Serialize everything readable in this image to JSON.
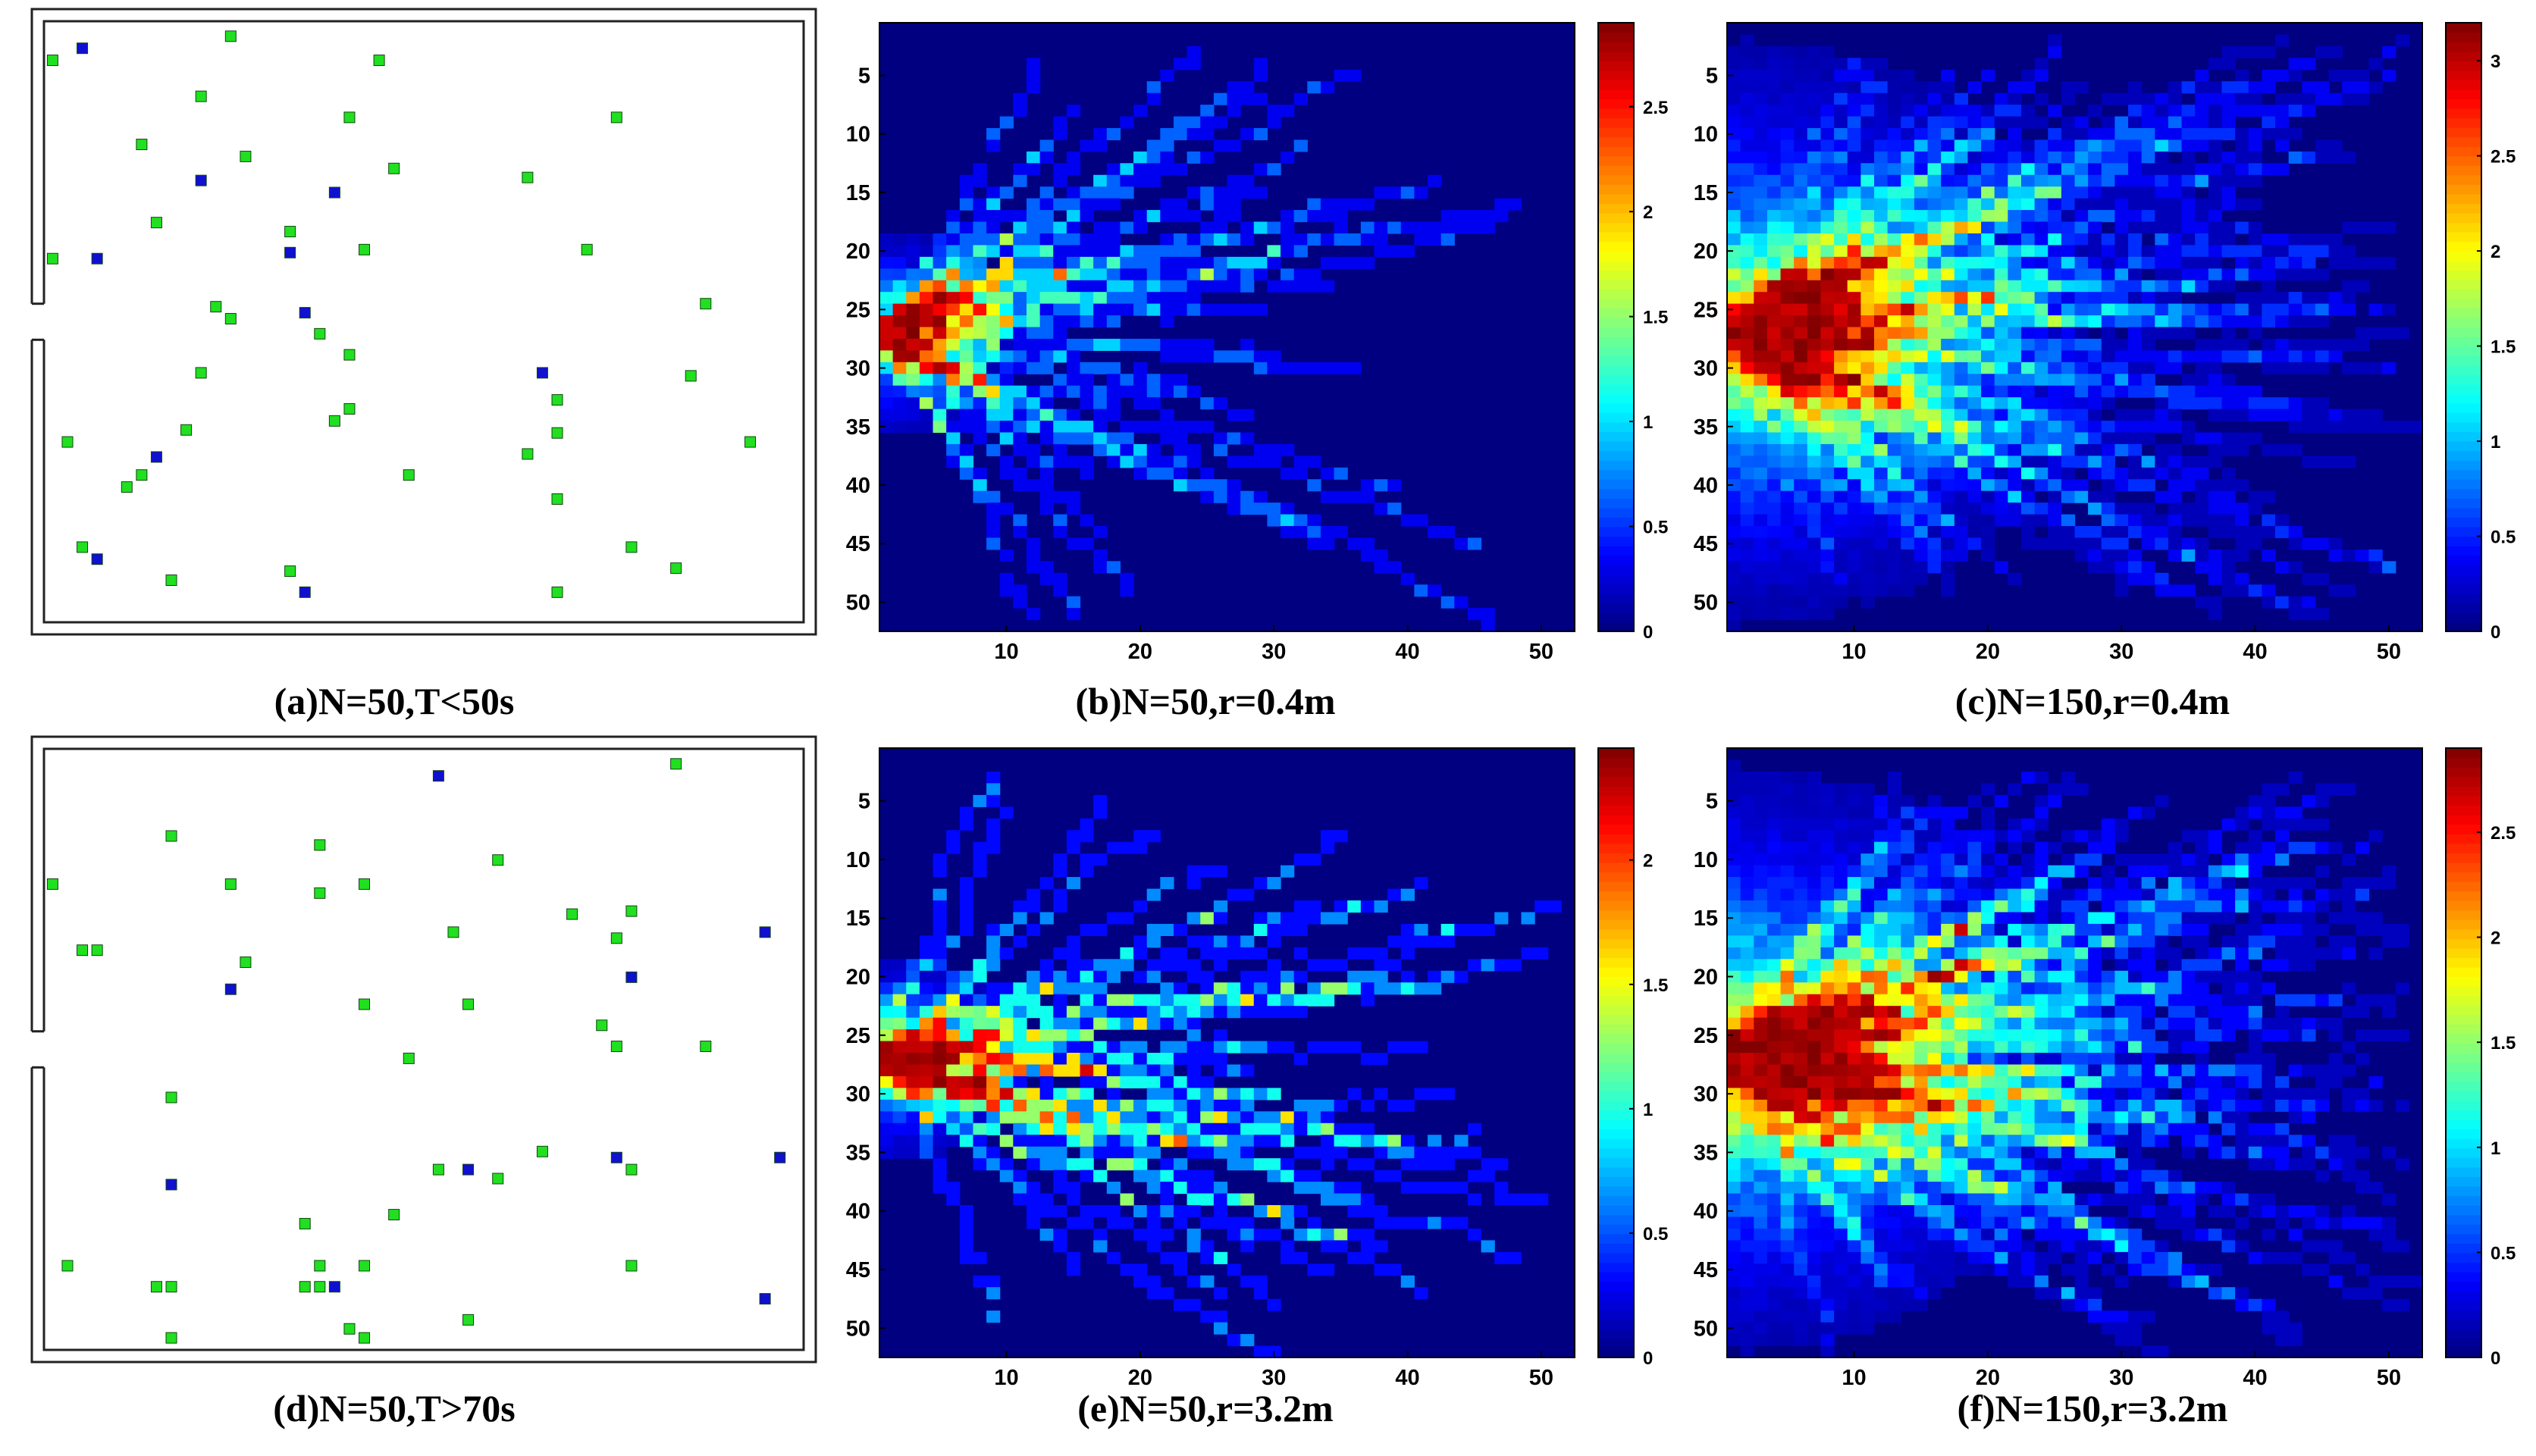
{
  "chart_data": [
    {
      "id": "a",
      "type": "scatter",
      "title": "(a)N=50,T<50s",
      "description_free": true,
      "room": {
        "width": 26,
        "height": 20,
        "door": "left",
        "door_y_range": [
          9.4,
          10.6
        ]
      },
      "series": [
        {
          "name": "green",
          "color": "#20e020",
          "points": [
            [
              0.7,
              1.3
            ],
            [
              6.7,
              0.5
            ],
            [
              11.7,
              1.3
            ],
            [
              5.7,
              2.5
            ],
            [
              10.7,
              3.2
            ],
            [
              19.7,
              3.2
            ],
            [
              3.7,
              4.1
            ],
            [
              7.2,
              4.5
            ],
            [
              12.2,
              4.9
            ],
            [
              16.7,
              5.2
            ],
            [
              4.2,
              6.7
            ],
            [
              8.7,
              7.0
            ],
            [
              11.2,
              7.6
            ],
            [
              18.7,
              7.6
            ],
            [
              0.7,
              7.9
            ],
            [
              6.2,
              9.5
            ],
            [
              22.7,
              9.4
            ],
            [
              6.7,
              9.9
            ],
            [
              9.7,
              10.4
            ],
            [
              10.7,
              11.1
            ],
            [
              5.7,
              11.7
            ],
            [
              22.2,
              11.8
            ],
            [
              17.7,
              12.6
            ],
            [
              10.7,
              12.9
            ],
            [
              10.2,
              13.3
            ],
            [
              5.2,
              13.6
            ],
            [
              17.7,
              13.7
            ],
            [
              1.2,
              14.0
            ],
            [
              24.2,
              14.0
            ],
            [
              16.7,
              14.4
            ],
            [
              3.7,
              15.1
            ],
            [
              12.7,
              15.1
            ],
            [
              3.2,
              15.5
            ],
            [
              17.7,
              15.9
            ],
            [
              1.7,
              17.5
            ],
            [
              20.2,
              17.5
            ],
            [
              21.7,
              18.2
            ],
            [
              4.7,
              18.6
            ],
            [
              8.7,
              18.3
            ],
            [
              17.7,
              19.0
            ]
          ]
        },
        {
          "name": "blue",
          "color": "#1010d0",
          "points": [
            [
              1.7,
              0.9
            ],
            [
              5.7,
              5.3
            ],
            [
              10.2,
              5.7
            ],
            [
              8.7,
              7.7
            ],
            [
              2.2,
              7.9
            ],
            [
              9.2,
              9.7
            ],
            [
              17.2,
              11.7
            ],
            [
              4.2,
              14.5
            ],
            [
              2.2,
              17.9
            ],
            [
              9.2,
              19.0
            ]
          ]
        }
      ]
    },
    {
      "id": "b",
      "type": "heatmap",
      "title": "(b)N=50,r=0.4m",
      "grid": [
        52,
        52
      ],
      "crange": [
        0,
        2.9
      ],
      "crowd": 50,
      "radius": 0.4,
      "seed": 11,
      "x_ticks": [
        10,
        20,
        30,
        40,
        50
      ],
      "y_ticks": [
        5,
        10,
        15,
        20,
        25,
        30,
        35,
        40,
        45,
        50
      ],
      "colorbar_ticks": [
        "0",
        "0.5",
        "1",
        "1.5",
        "2",
        "2.5"
      ],
      "colorbar_values": [
        0,
        0.5,
        1,
        1.5,
        2,
        2.5
      ]
    },
    {
      "id": "c",
      "type": "heatmap",
      "title": "(c)N=150,r=0.4m",
      "grid": [
        52,
        52
      ],
      "crange": [
        0,
        3.2
      ],
      "crowd": 150,
      "radius": 0.4,
      "seed": 23,
      "x_ticks": [
        10,
        20,
        30,
        40,
        50
      ],
      "y_ticks": [
        5,
        10,
        15,
        20,
        25,
        30,
        35,
        40,
        45,
        50
      ],
      "colorbar_ticks": [
        "0",
        "0.5",
        "1",
        "1.5",
        "2",
        "2.5",
        "3"
      ],
      "colorbar_values": [
        0,
        0.5,
        1,
        1.5,
        2,
        2.5,
        3
      ]
    },
    {
      "id": "d",
      "type": "scatter",
      "title": "(d)N=50,T>70s",
      "room": {
        "width": 26,
        "height": 20,
        "door": "left",
        "door_y_range": [
          9.4,
          10.6
        ]
      },
      "series": [
        {
          "name": "green",
          "color": "#20e020",
          "points": [
            [
              21.7,
              0.5
            ],
            [
              4.7,
              2.9
            ],
            [
              9.7,
              3.2
            ],
            [
              15.7,
              3.7
            ],
            [
              0.7,
              4.5
            ],
            [
              6.7,
              4.5
            ],
            [
              11.2,
              4.5
            ],
            [
              9.7,
              4.8
            ],
            [
              18.2,
              5.5
            ],
            [
              20.2,
              5.4
            ],
            [
              1.7,
              6.7
            ],
            [
              2.2,
              6.7
            ],
            [
              14.2,
              6.1
            ],
            [
              19.7,
              6.3
            ],
            [
              7.2,
              7.1
            ],
            [
              14.7,
              8.5
            ],
            [
              11.2,
              8.5
            ],
            [
              19.2,
              9.2
            ],
            [
              22.7,
              9.9
            ],
            [
              19.7,
              9.9
            ],
            [
              12.7,
              10.3
            ],
            [
              4.7,
              11.6
            ],
            [
              17.2,
              13.4
            ],
            [
              13.7,
              14.0
            ],
            [
              15.7,
              14.3
            ],
            [
              20.2,
              14.0
            ],
            [
              12.2,
              15.5
            ],
            [
              9.2,
              15.8
            ],
            [
              1.2,
              17.2
            ],
            [
              9.7,
              17.2
            ],
            [
              11.2,
              17.2
            ],
            [
              20.2,
              17.2
            ],
            [
              4.2,
              17.9
            ],
            [
              4.7,
              17.9
            ],
            [
              9.2,
              17.9
            ],
            [
              9.7,
              17.9
            ],
            [
              14.7,
              19.0
            ],
            [
              10.7,
              19.3
            ],
            [
              4.7,
              19.6
            ],
            [
              11.2,
              19.6
            ]
          ]
        },
        {
          "name": "blue",
          "color": "#1010d0",
          "points": [
            [
              13.7,
              0.9
            ],
            [
              24.7,
              6.1
            ],
            [
              20.2,
              7.6
            ],
            [
              6.7,
              8.0
            ],
            [
              4.7,
              14.5
            ],
            [
              14.7,
              14.0
            ],
            [
              19.7,
              13.6
            ],
            [
              25.2,
              13.6
            ],
            [
              10.2,
              17.9
            ],
            [
              24.7,
              18.3
            ]
          ]
        }
      ]
    },
    {
      "id": "e",
      "type": "heatmap",
      "title": "(e)N=50,r=3.2m",
      "grid": [
        52,
        52
      ],
      "crange": [
        0,
        2.45
      ],
      "crowd": 50,
      "radius": 3.2,
      "seed": 37,
      "x_ticks": [
        10,
        20,
        30,
        40,
        50
      ],
      "y_ticks": [
        5,
        10,
        15,
        20,
        25,
        30,
        35,
        40,
        45,
        50
      ],
      "colorbar_ticks": [
        "0",
        "0.5",
        "1",
        "1.5",
        "2"
      ],
      "colorbar_values": [
        0,
        0.5,
        1,
        1.5,
        2
      ]
    },
    {
      "id": "f",
      "type": "heatmap",
      "title": "(f)N=150,r=3.2m",
      "grid": [
        52,
        52
      ],
      "crange": [
        0,
        2.9
      ],
      "crowd": 150,
      "radius": 3.2,
      "seed": 51,
      "x_ticks": [
        10,
        20,
        30,
        40,
        50
      ],
      "y_ticks": [
        5,
        10,
        15,
        20,
        25,
        30,
        35,
        40,
        45,
        50
      ],
      "colorbar_ticks": [
        "0",
        "0.5",
        "1",
        "1.5",
        "2",
        "2.5"
      ],
      "colorbar_values": [
        0,
        0.5,
        1,
        1.5,
        2,
        2.5
      ]
    }
  ]
}
